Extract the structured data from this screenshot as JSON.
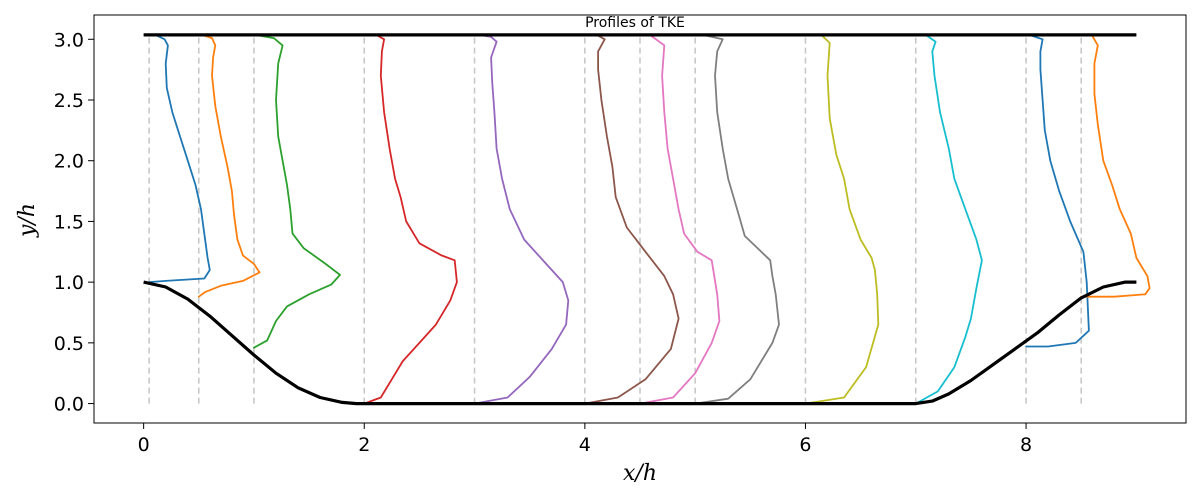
{
  "chart_data": {
    "type": "line",
    "title": "Profiles of TKE",
    "xlabel": "x/h",
    "ylabel": "y/h",
    "xlim": [
      -0.45,
      9.45
    ],
    "ylim": [
      -0.16,
      3.2
    ],
    "xticks": [
      0,
      2,
      4,
      6,
      8
    ],
    "yticks": [
      0.0,
      0.5,
      1.0,
      1.5,
      2.0,
      2.5,
      3.0
    ],
    "ytick_labels": [
      "0.0",
      "0.5",
      "1.0",
      "1.5",
      "2.0",
      "2.5",
      "3.0"
    ],
    "grid": false,
    "legend": "none",
    "boundaries": {
      "color": "#000000",
      "top_wall": {
        "x": [
          0,
          9
        ],
        "y": [
          3.036,
          3.036
        ]
      },
      "bottom_hill": {
        "x": [
          0,
          0.2,
          0.4,
          0.6,
          0.8,
          1.0,
          1.2,
          1.4,
          1.6,
          1.8,
          1.93,
          7.0,
          7.15,
          7.3,
          7.5,
          7.7,
          7.9,
          8.1,
          8.3,
          8.5,
          8.7,
          8.9,
          9.0
        ],
        "y": [
          1.0,
          0.96,
          0.86,
          0.72,
          0.56,
          0.4,
          0.25,
          0.13,
          0.05,
          0.01,
          0.0,
          0.0,
          0.02,
          0.08,
          0.19,
          0.32,
          0.45,
          0.58,
          0.73,
          0.87,
          0.96,
          1.0,
          1.0
        ]
      }
    },
    "reference_lines": {
      "color": "#c8c8c8",
      "x": [
        0.05,
        0.5,
        1.0,
        2.0,
        3.0,
        4.0,
        4.5,
        5.0,
        6.0,
        7.0,
        8.0,
        8.5
      ]
    },
    "series": [
      {
        "x0": 0.05,
        "color": "#1f77b4",
        "x": [
          0.05,
          0.2,
          0.55,
          0.6,
          0.58,
          0.55,
          0.52,
          0.47,
          0.4,
          0.33,
          0.26,
          0.21,
          0.2,
          0.22,
          0.19,
          0.12,
          0.05
        ],
        "y": [
          1.0,
          1.01,
          1.03,
          1.1,
          1.2,
          1.4,
          1.6,
          1.8,
          2.0,
          2.2,
          2.4,
          2.6,
          2.8,
          2.95,
          3.0,
          3.03,
          3.036
        ]
      },
      {
        "x0": 0.5,
        "color": "#ff7f0e",
        "x": [
          0.5,
          0.56,
          0.7,
          0.9,
          1.05,
          1.0,
          0.9,
          0.85,
          0.82,
          0.8,
          0.76,
          0.7,
          0.65,
          0.62,
          0.63,
          0.65,
          0.62,
          0.55,
          0.5
        ],
        "y": [
          0.88,
          0.92,
          0.97,
          1.01,
          1.08,
          1.15,
          1.22,
          1.35,
          1.55,
          1.75,
          1.95,
          2.2,
          2.45,
          2.7,
          2.85,
          2.95,
          3.01,
          3.03,
          3.036
        ]
      },
      {
        "x0": 1.0,
        "color": "#2ca02c",
        "x": [
          1.0,
          1.12,
          1.2,
          1.3,
          1.5,
          1.7,
          1.78,
          1.65,
          1.45,
          1.35,
          1.33,
          1.3,
          1.26,
          1.22,
          1.2,
          1.22,
          1.26,
          1.18,
          1.05,
          1.0
        ],
        "y": [
          0.46,
          0.52,
          0.68,
          0.8,
          0.9,
          0.98,
          1.06,
          1.15,
          1.28,
          1.4,
          1.6,
          1.8,
          2.0,
          2.2,
          2.5,
          2.8,
          2.95,
          3.01,
          3.03,
          3.036
        ]
      },
      {
        "x0": 2.0,
        "color": "#d62728",
        "x": [
          2.0,
          2.15,
          2.25,
          2.35,
          2.5,
          2.65,
          2.78,
          2.84,
          2.82,
          2.7,
          2.5,
          2.38,
          2.33,
          2.28,
          2.23,
          2.18,
          2.15,
          2.16,
          2.18,
          2.12,
          2.0
        ],
        "y": [
          0.0,
          0.05,
          0.2,
          0.35,
          0.5,
          0.65,
          0.85,
          1.0,
          1.18,
          1.22,
          1.32,
          1.5,
          1.7,
          1.85,
          2.1,
          2.4,
          2.7,
          2.9,
          3.0,
          3.03,
          3.036
        ]
      },
      {
        "x0": 3.0,
        "color": "#9467bd",
        "x": [
          3.0,
          3.3,
          3.5,
          3.7,
          3.83,
          3.85,
          3.8,
          3.65,
          3.45,
          3.32,
          3.25,
          3.2,
          3.18,
          3.16,
          3.15,
          3.2,
          3.15,
          3.05,
          3.0
        ],
        "y": [
          0.0,
          0.05,
          0.22,
          0.45,
          0.65,
          0.85,
          1.0,
          1.15,
          1.35,
          1.6,
          1.85,
          2.1,
          2.4,
          2.65,
          2.85,
          2.98,
          3.02,
          3.035,
          3.036
        ]
      },
      {
        "x0": 4.0,
        "color": "#8c564b",
        "x": [
          4.0,
          4.3,
          4.55,
          4.78,
          4.85,
          4.8,
          4.72,
          4.55,
          4.38,
          4.28,
          4.25,
          4.2,
          4.15,
          4.12,
          4.12,
          4.18,
          4.12,
          4.02,
          4.0
        ],
        "y": [
          0.0,
          0.05,
          0.2,
          0.45,
          0.7,
          0.9,
          1.05,
          1.25,
          1.45,
          1.7,
          1.95,
          2.2,
          2.5,
          2.75,
          2.9,
          3.0,
          3.03,
          3.035,
          3.036
        ]
      },
      {
        "x0": 4.5,
        "color": "#e377c2",
        "x": [
          4.5,
          4.8,
          5.0,
          5.15,
          5.22,
          5.2,
          5.15,
          5.02,
          4.9,
          4.85,
          4.8,
          4.75,
          4.72,
          4.7,
          4.72,
          4.6,
          4.5
        ],
        "y": [
          0.0,
          0.05,
          0.25,
          0.5,
          0.68,
          0.9,
          1.18,
          1.25,
          1.4,
          1.6,
          1.85,
          2.1,
          2.4,
          2.7,
          2.95,
          3.03,
          3.036
        ]
      },
      {
        "x0": 5.0,
        "color": "#7f7f7f",
        "x": [
          5.0,
          5.3,
          5.5,
          5.7,
          5.76,
          5.73,
          5.7,
          5.68,
          5.45,
          5.38,
          5.3,
          5.25,
          5.2,
          5.18,
          5.2,
          5.25,
          5.1,
          5.0
        ],
        "y": [
          0.0,
          0.04,
          0.2,
          0.5,
          0.65,
          0.9,
          1.05,
          1.18,
          1.38,
          1.6,
          1.85,
          2.1,
          2.4,
          2.7,
          2.9,
          3.0,
          3.03,
          3.036
        ]
      },
      {
        "x0": 6.0,
        "color": "#bcbd22",
        "x": [
          6.0,
          6.35,
          6.55,
          6.66,
          6.65,
          6.63,
          6.6,
          6.5,
          6.4,
          6.35,
          6.28,
          6.22,
          6.2,
          6.22,
          6.15,
          6.0
        ],
        "y": [
          0.0,
          0.05,
          0.3,
          0.65,
          0.9,
          1.1,
          1.2,
          1.35,
          1.6,
          1.85,
          2.05,
          2.35,
          2.7,
          2.97,
          3.03,
          3.036
        ]
      },
      {
        "x0": 7.0,
        "color": "#17becf",
        "x": [
          7.0,
          7.2,
          7.35,
          7.45,
          7.5,
          7.55,
          7.6,
          7.55,
          7.45,
          7.35,
          7.3,
          7.22,
          7.17,
          7.15,
          7.18,
          7.1,
          7.0
        ],
        "y": [
          0.0,
          0.1,
          0.3,
          0.55,
          0.7,
          0.95,
          1.18,
          1.35,
          1.6,
          1.85,
          2.1,
          2.4,
          2.7,
          2.9,
          2.98,
          3.03,
          3.036
        ]
      },
      {
        "x0": 8.0,
        "color": "#1f77b4",
        "x": [
          8.0,
          8.2,
          8.45,
          8.57,
          8.56,
          8.55,
          8.52,
          8.4,
          8.3,
          8.22,
          8.17,
          8.15,
          8.13,
          8.13,
          8.15,
          8.05,
          8.0
        ],
        "y": [
          0.47,
          0.47,
          0.5,
          0.6,
          0.8,
          1.0,
          1.25,
          1.5,
          1.75,
          2.0,
          2.25,
          2.5,
          2.75,
          2.9,
          3.0,
          3.03,
          3.036
        ]
      },
      {
        "x0": 8.5,
        "color": "#ff7f0e",
        "x": [
          8.5,
          8.8,
          9.08,
          9.12,
          9.1,
          9.0,
          8.95,
          8.85,
          8.78,
          8.7,
          8.65,
          8.62,
          8.62,
          8.65,
          8.6,
          8.5
        ],
        "y": [
          0.88,
          0.88,
          0.9,
          0.95,
          1.05,
          1.2,
          1.4,
          1.6,
          1.8,
          2.0,
          2.3,
          2.55,
          2.8,
          2.95,
          3.03,
          3.036
        ]
      }
    ]
  }
}
